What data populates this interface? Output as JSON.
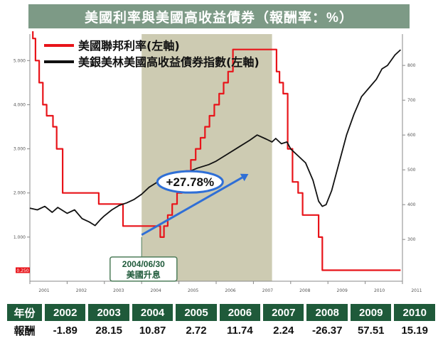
{
  "title": "美國利率與美國高收益債券（報酬率：%）",
  "chart_data": {
    "type": "line",
    "legend": {
      "placement": "top",
      "entries": [
        {
          "label": "美國聯邦利率(左軸)",
          "color": "#e8141a"
        },
        {
          "label": "美銀美林美國高收益債券指數(左軸)",
          "color": "#111111"
        }
      ]
    },
    "x_tick_labels": [
      "2001",
      "2002",
      "2003",
      "2004",
      "2005",
      "2006",
      "2007",
      "2008",
      "2009",
      "2010",
      "2011"
    ],
    "xlim": [
      2001.0,
      2011.0
    ],
    "y_left": {
      "ticks": [
        "1.000",
        "2.000",
        "3.000",
        "4.000",
        "5.000"
      ],
      "range": [
        0.0,
        5.6
      ]
    },
    "y_right": {
      "ticks": [
        "300",
        "400",
        "500",
        "600",
        "700",
        "800"
      ],
      "range": [
        180,
        890
      ]
    },
    "series": [
      {
        "name": "美國聯邦利率(左軸)",
        "color": "#e8141a",
        "axis": "left",
        "step": true,
        "x": [
          2001.0,
          2001.08,
          2001.15,
          2001.25,
          2001.35,
          2001.45,
          2001.62,
          2001.72,
          2001.88,
          2002.85,
          2003.5,
          2004.5,
          2004.6,
          2004.7,
          2004.82,
          2004.95,
          2005.08,
          2005.2,
          2005.32,
          2005.45,
          2005.58,
          2005.7,
          2005.82,
          2005.95,
          2006.08,
          2006.2,
          2006.32,
          2006.45,
          2007.62,
          2007.7,
          2007.8,
          2007.92,
          2008.05,
          2008.2,
          2008.32,
          2008.75,
          2008.85,
          2008.96,
          2010.95
        ],
        "y": [
          6.0,
          5.5,
          5.0,
          4.5,
          4.0,
          3.75,
          3.5,
          3.0,
          2.0,
          1.75,
          1.25,
          1.0,
          1.25,
          1.5,
          1.75,
          2.0,
          2.25,
          2.5,
          2.75,
          3.0,
          3.25,
          3.5,
          3.75,
          4.0,
          4.25,
          4.5,
          4.75,
          5.25,
          4.75,
          4.5,
          4.25,
          3.0,
          2.25,
          2.0,
          1.5,
          1.0,
          0.25,
          0.25,
          0.25
        ]
      },
      {
        "name": "美銀美林美國高收益債券指數(左軸)",
        "color": "#111111",
        "axis": "right",
        "x": [
          2001.0,
          2001.2,
          2001.4,
          2001.6,
          2001.75,
          2002.0,
          2002.2,
          2002.4,
          2002.6,
          2002.75,
          2002.9,
          2003.0,
          2003.2,
          2003.4,
          2003.6,
          2003.8,
          2004.0,
          2004.2,
          2004.5,
          2004.8,
          2005.0,
          2005.2,
          2005.5,
          2005.8,
          2006.0,
          2006.3,
          2006.6,
          2006.9,
          2007.1,
          2007.35,
          2007.5,
          2007.6,
          2007.75,
          2007.9,
          2008.0,
          2008.2,
          2008.4,
          2008.6,
          2008.75,
          2008.85,
          2008.95,
          2009.1,
          2009.3,
          2009.5,
          2009.7,
          2009.9,
          2010.1,
          2010.3,
          2010.45,
          2010.6,
          2010.8,
          2010.95
        ],
        "y": [
          390,
          385,
          395,
          378,
          392,
          375,
          385,
          360,
          350,
          340,
          358,
          368,
          385,
          398,
          405,
          415,
          430,
          450,
          470,
          475,
          482,
          492,
          505,
          515,
          525,
          545,
          565,
          585,
          600,
          588,
          580,
          590,
          575,
          580,
          560,
          540,
          520,
          470,
          410,
          395,
          400,
          440,
          520,
          600,
          660,
          710,
          735,
          760,
          790,
          800,
          830,
          845
        ]
      }
    ],
    "shaded_region": {
      "x": [
        2004.0,
        2007.5
      ]
    },
    "annotations": [
      {
        "text": "+27.78%",
        "at": [
          2005.3,
          2.25
        ]
      },
      {
        "text": "2004/06/30",
        "at": [
          2004.05,
          0.42
        ]
      },
      {
        "text": "美國升息",
        "at": [
          2004.05,
          0.05
        ]
      }
    ],
    "callout_rate_label": "0.250",
    "returns_table": {
      "row_header_year": "年份",
      "row_header_return": "報酬",
      "years": [
        "2002",
        "2003",
        "2004",
        "2005",
        "2006",
        "2007",
        "2008",
        "2009",
        "2010"
      ],
      "returns": [
        "-1.89",
        "28.15",
        "10.87",
        "2.72",
        "11.74",
        "2.24",
        "-26.37",
        "57.51",
        "15.19"
      ]
    }
  }
}
